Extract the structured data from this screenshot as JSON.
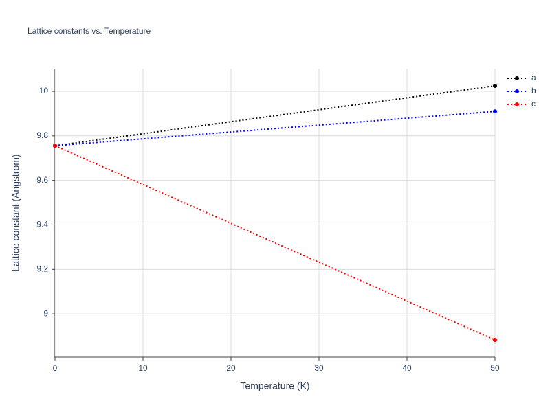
{
  "chart_data": {
    "type": "line",
    "title": "Lattice constants vs. Temperature",
    "x_label": "Temperature (K)",
    "y_label": "Lattice constant (Angstrom)",
    "x": [
      0,
      50
    ],
    "series": [
      {
        "name": "a",
        "color": "#000000",
        "values": [
          9.756,
          10.025
        ]
      },
      {
        "name": "b",
        "color": "#0000ff",
        "values": [
          9.756,
          9.91
        ]
      },
      {
        "name": "c",
        "color": "#ff0000",
        "values": [
          9.756,
          8.883
        ]
      }
    ],
    "xlim": [
      0,
      50
    ],
    "xticks": [
      0,
      10,
      20,
      30,
      40,
      50
    ],
    "ylim": [
      8.806,
      10.102
    ],
    "yticks": [
      9,
      9.2,
      9.4,
      9.6,
      9.8,
      10
    ],
    "grid": true,
    "legend": "right"
  }
}
